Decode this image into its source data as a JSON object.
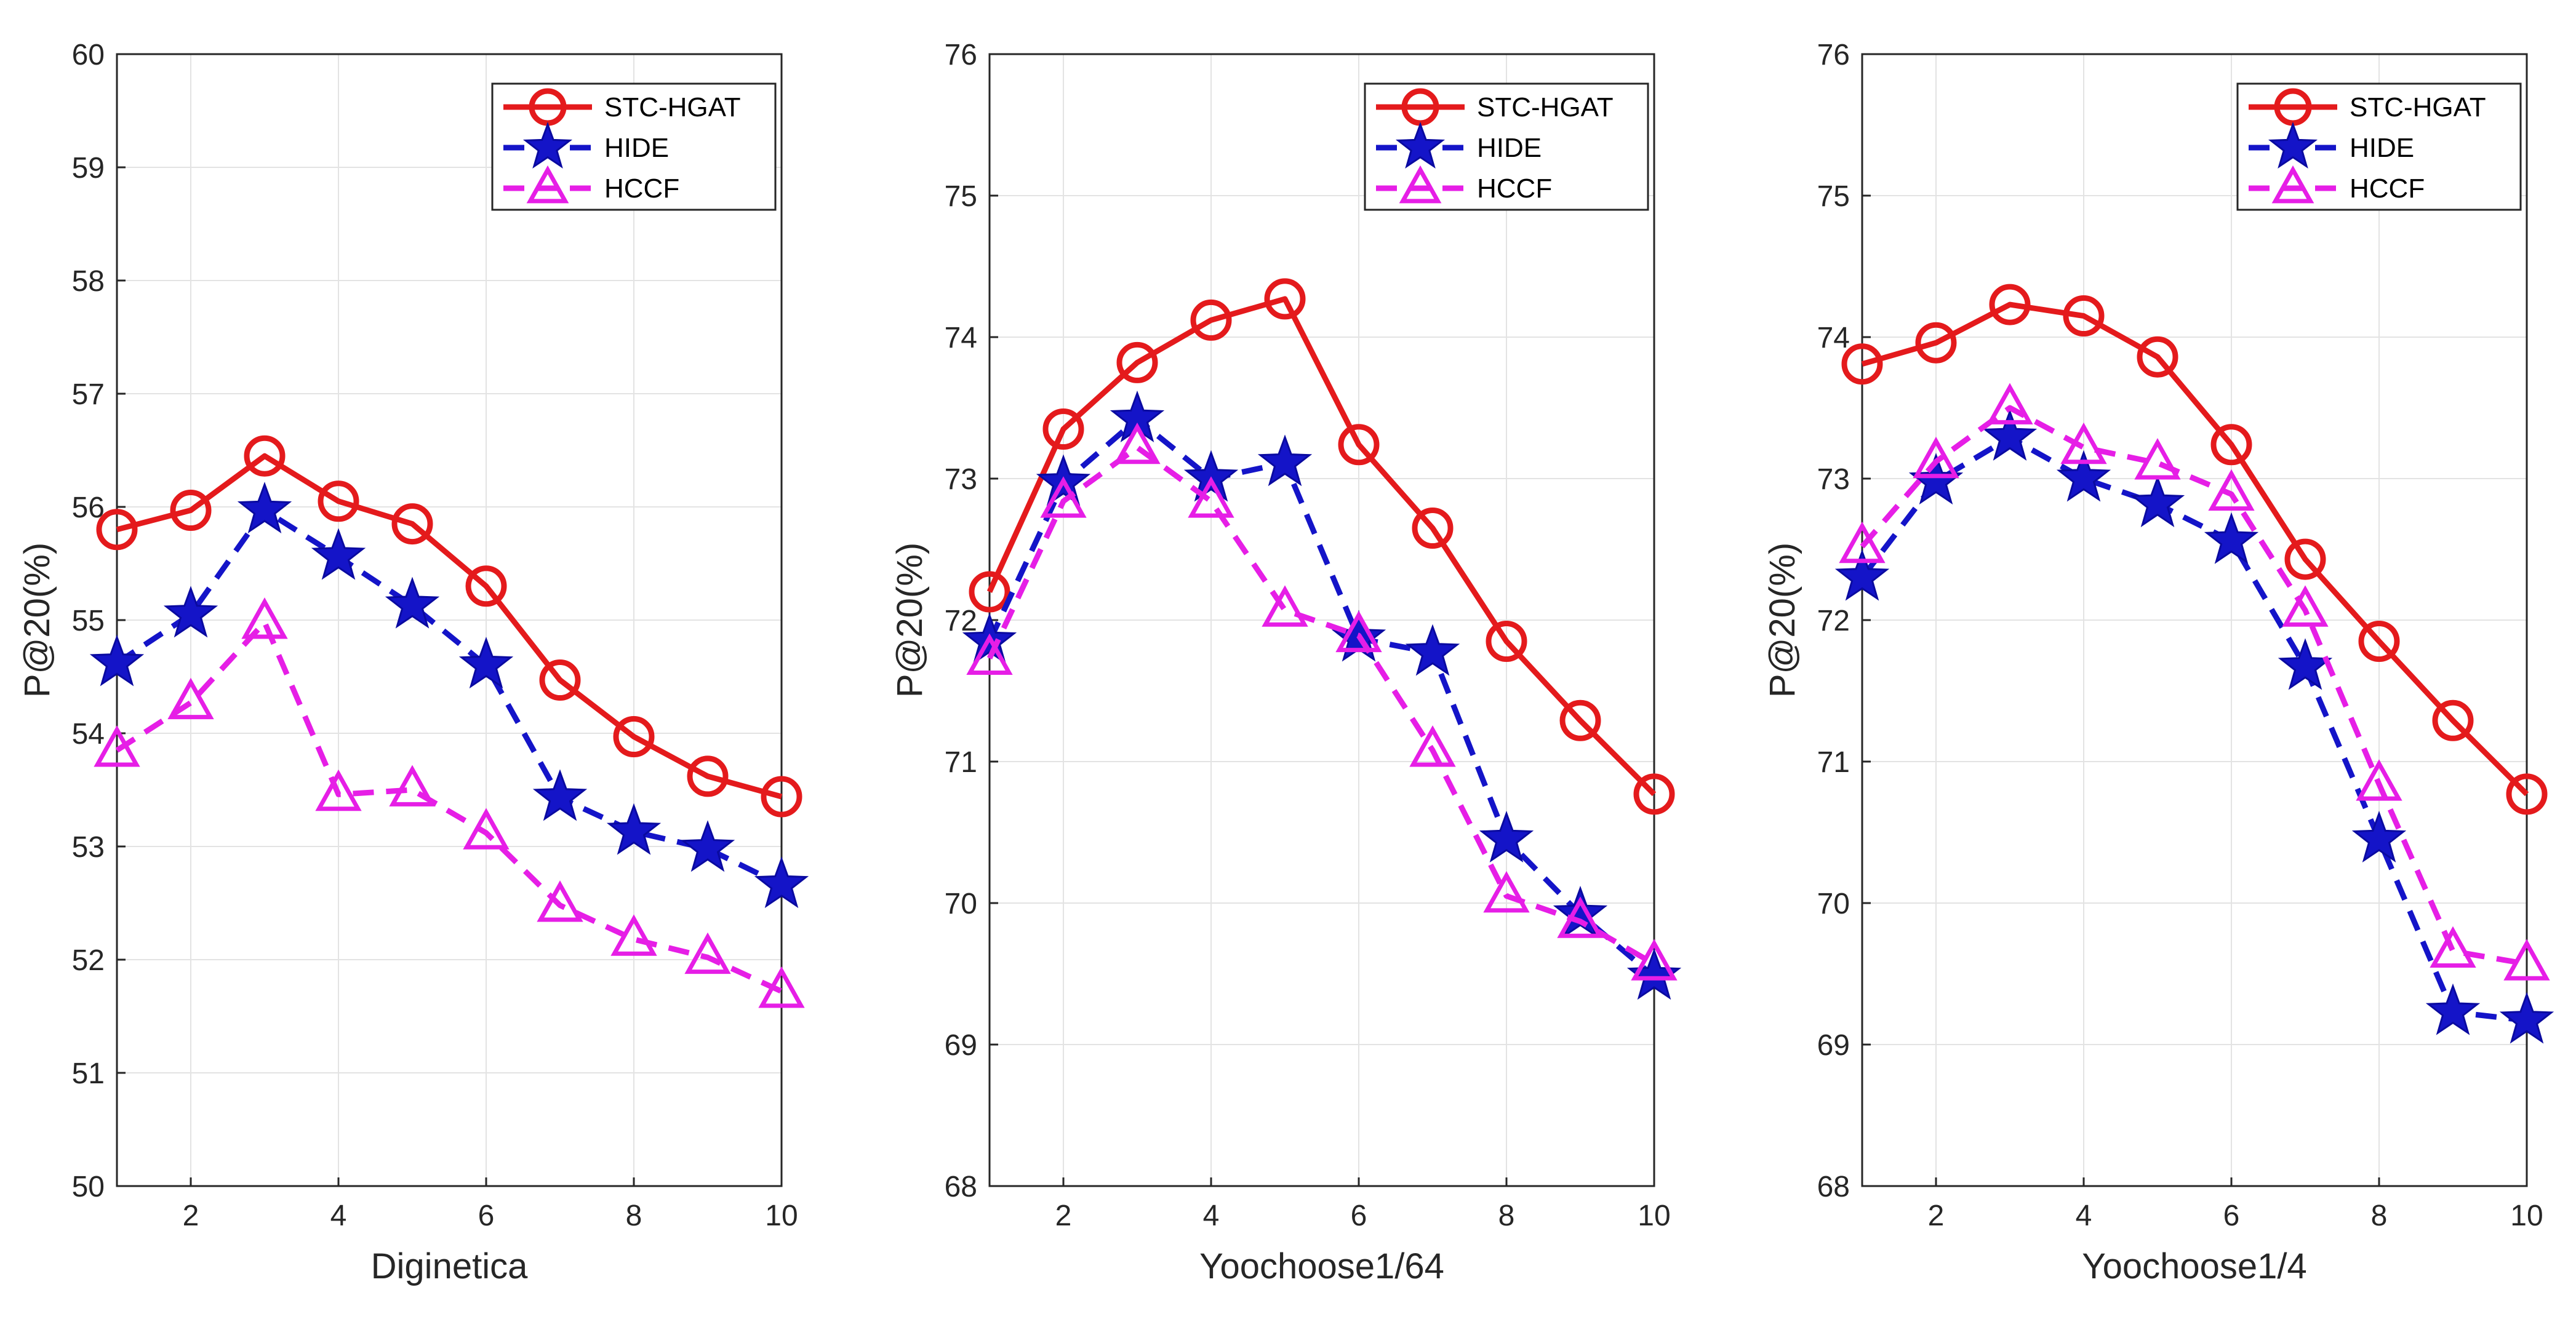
{
  "chart_data": [
    {
      "type": "line",
      "xlabel": "Diginetica",
      "ylabel": "P@20(%)",
      "xlim": [
        1,
        10
      ],
      "ylim": [
        50,
        60
      ],
      "xticks": [
        2,
        4,
        6,
        8,
        10
      ],
      "yticks": [
        50,
        51,
        52,
        53,
        54,
        55,
        56,
        57,
        58,
        59,
        60
      ],
      "grid": true,
      "legend_position": "top-right",
      "x": [
        1,
        2,
        3,
        4,
        5,
        6,
        7,
        8,
        9,
        10
      ],
      "series": [
        {
          "name": "STC-HGAT",
          "color": "#e41a1c",
          "marker": "circle",
          "values": [
            55.8,
            55.97,
            56.45,
            56.05,
            55.85,
            55.3,
            54.47,
            53.97,
            53.62,
            53.44
          ]
        },
        {
          "name": "HIDE",
          "color": "#1414c8",
          "marker": "star",
          "values": [
            54.62,
            55.05,
            55.97,
            55.56,
            55.13,
            54.6,
            53.43,
            53.13,
            52.98,
            52.66
          ]
        },
        {
          "name": "HCCF",
          "color": "#e61ee6",
          "marker": "triangle",
          "values": [
            53.85,
            54.27,
            54.98,
            53.46,
            53.5,
            53.12,
            52.48,
            52.18,
            52.02,
            51.72
          ]
        }
      ]
    },
    {
      "type": "line",
      "xlabel": "Yoochoose1/64",
      "ylabel": "P@20(%)",
      "xlim": [
        1,
        10
      ],
      "ylim": [
        68,
        76
      ],
      "xticks": [
        2,
        4,
        6,
        8,
        10
      ],
      "yticks": [
        68,
        69,
        70,
        71,
        72,
        73,
        74,
        75,
        76
      ],
      "grid": true,
      "legend_position": "top-right",
      "x": [
        1,
        2,
        3,
        4,
        5,
        6,
        7,
        8,
        9,
        10
      ],
      "series": [
        {
          "name": "STC-HGAT",
          "color": "#e41a1c",
          "marker": "circle",
          "values": [
            72.2,
            73.35,
            73.82,
            74.12,
            74.27,
            73.24,
            72.65,
            71.85,
            71.29,
            70.77
          ]
        },
        {
          "name": "HIDE",
          "color": "#1414c8",
          "marker": "star",
          "values": [
            71.85,
            72.97,
            73.42,
            73.0,
            73.11,
            71.87,
            71.77,
            70.45,
            69.92,
            69.48
          ]
        },
        {
          "name": "HCCF",
          "color": "#e61ee6",
          "marker": "triangle",
          "values": [
            71.73,
            72.84,
            73.22,
            72.84,
            72.07,
            71.89,
            71.08,
            70.05,
            69.87,
            69.57
          ]
        }
      ]
    },
    {
      "type": "line",
      "xlabel": "Yoochoose1/4",
      "ylabel": "P@20(%)",
      "xlim": [
        1,
        10
      ],
      "ylim": [
        68,
        76
      ],
      "xticks": [
        2,
        4,
        6,
        8,
        10
      ],
      "yticks": [
        68,
        69,
        70,
        71,
        72,
        73,
        74,
        75,
        76
      ],
      "grid": true,
      "legend_position": "top-right",
      "x": [
        1,
        2,
        3,
        4,
        5,
        6,
        7,
        8,
        9,
        10
      ],
      "series": [
        {
          "name": "STC-HGAT",
          "color": "#e41a1c",
          "marker": "circle",
          "values": [
            73.81,
            73.96,
            74.23,
            74.15,
            73.86,
            73.24,
            72.43,
            71.85,
            71.29,
            70.77
          ]
        },
        {
          "name": "HIDE",
          "color": "#1414c8",
          "marker": "star",
          "values": [
            72.3,
            72.98,
            73.29,
            73.0,
            72.82,
            72.56,
            71.67,
            70.45,
            69.23,
            69.17
          ]
        },
        {
          "name": "HCCF",
          "color": "#e61ee6",
          "marker": "triangle",
          "values": [
            72.52,
            73.12,
            73.5,
            73.22,
            73.11,
            72.89,
            72.07,
            70.84,
            69.66,
            69.57
          ]
        }
      ]
    }
  ]
}
